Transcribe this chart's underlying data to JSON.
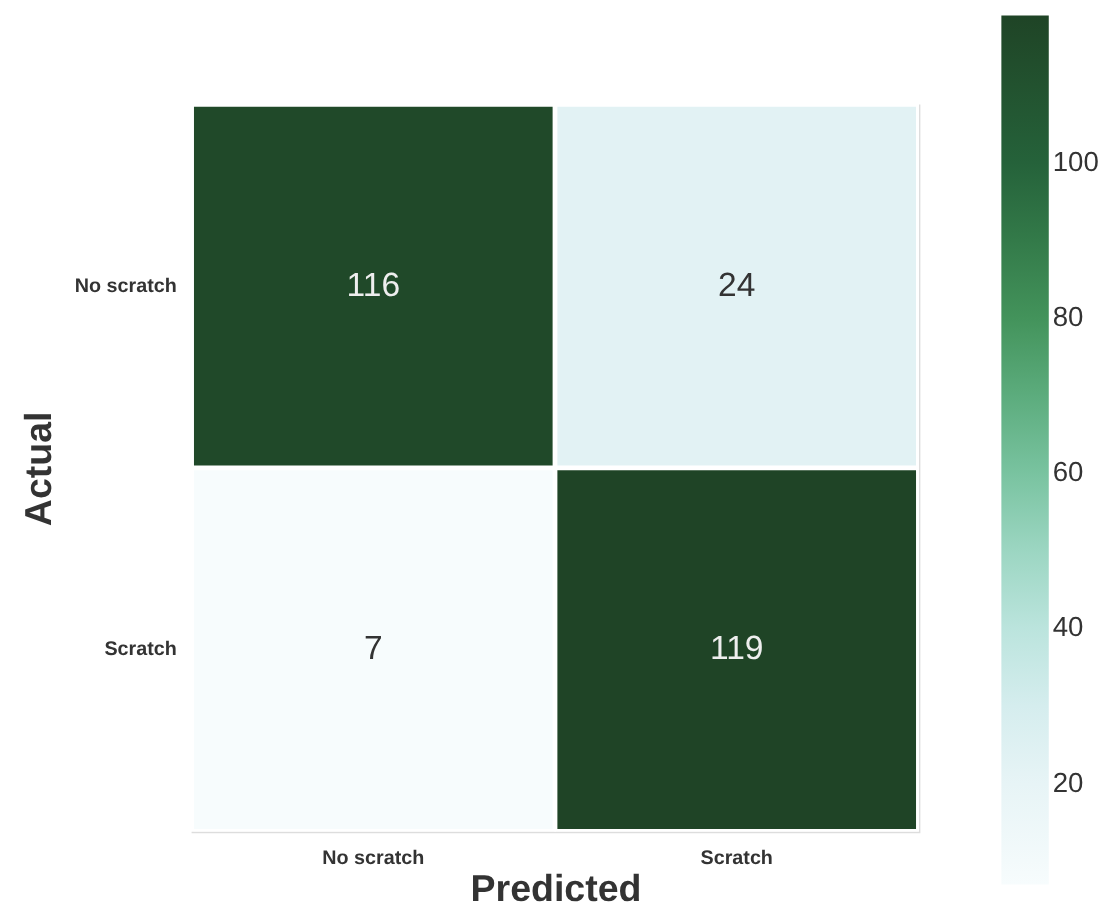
{
  "chart_data": {
    "type": "heatmap",
    "xlabel": "Predicted",
    "ylabel": "Actual",
    "categories": [
      "No scratch",
      "Scratch"
    ],
    "y_categories": [
      "No scratch",
      "Scratch"
    ],
    "cells": [
      [
        116,
        24
      ],
      [
        7,
        119
      ]
    ],
    "clim": [
      7,
      119
    ],
    "cticks": [
      20,
      40,
      60,
      80,
      100
    ],
    "data_labels": true
  }
}
